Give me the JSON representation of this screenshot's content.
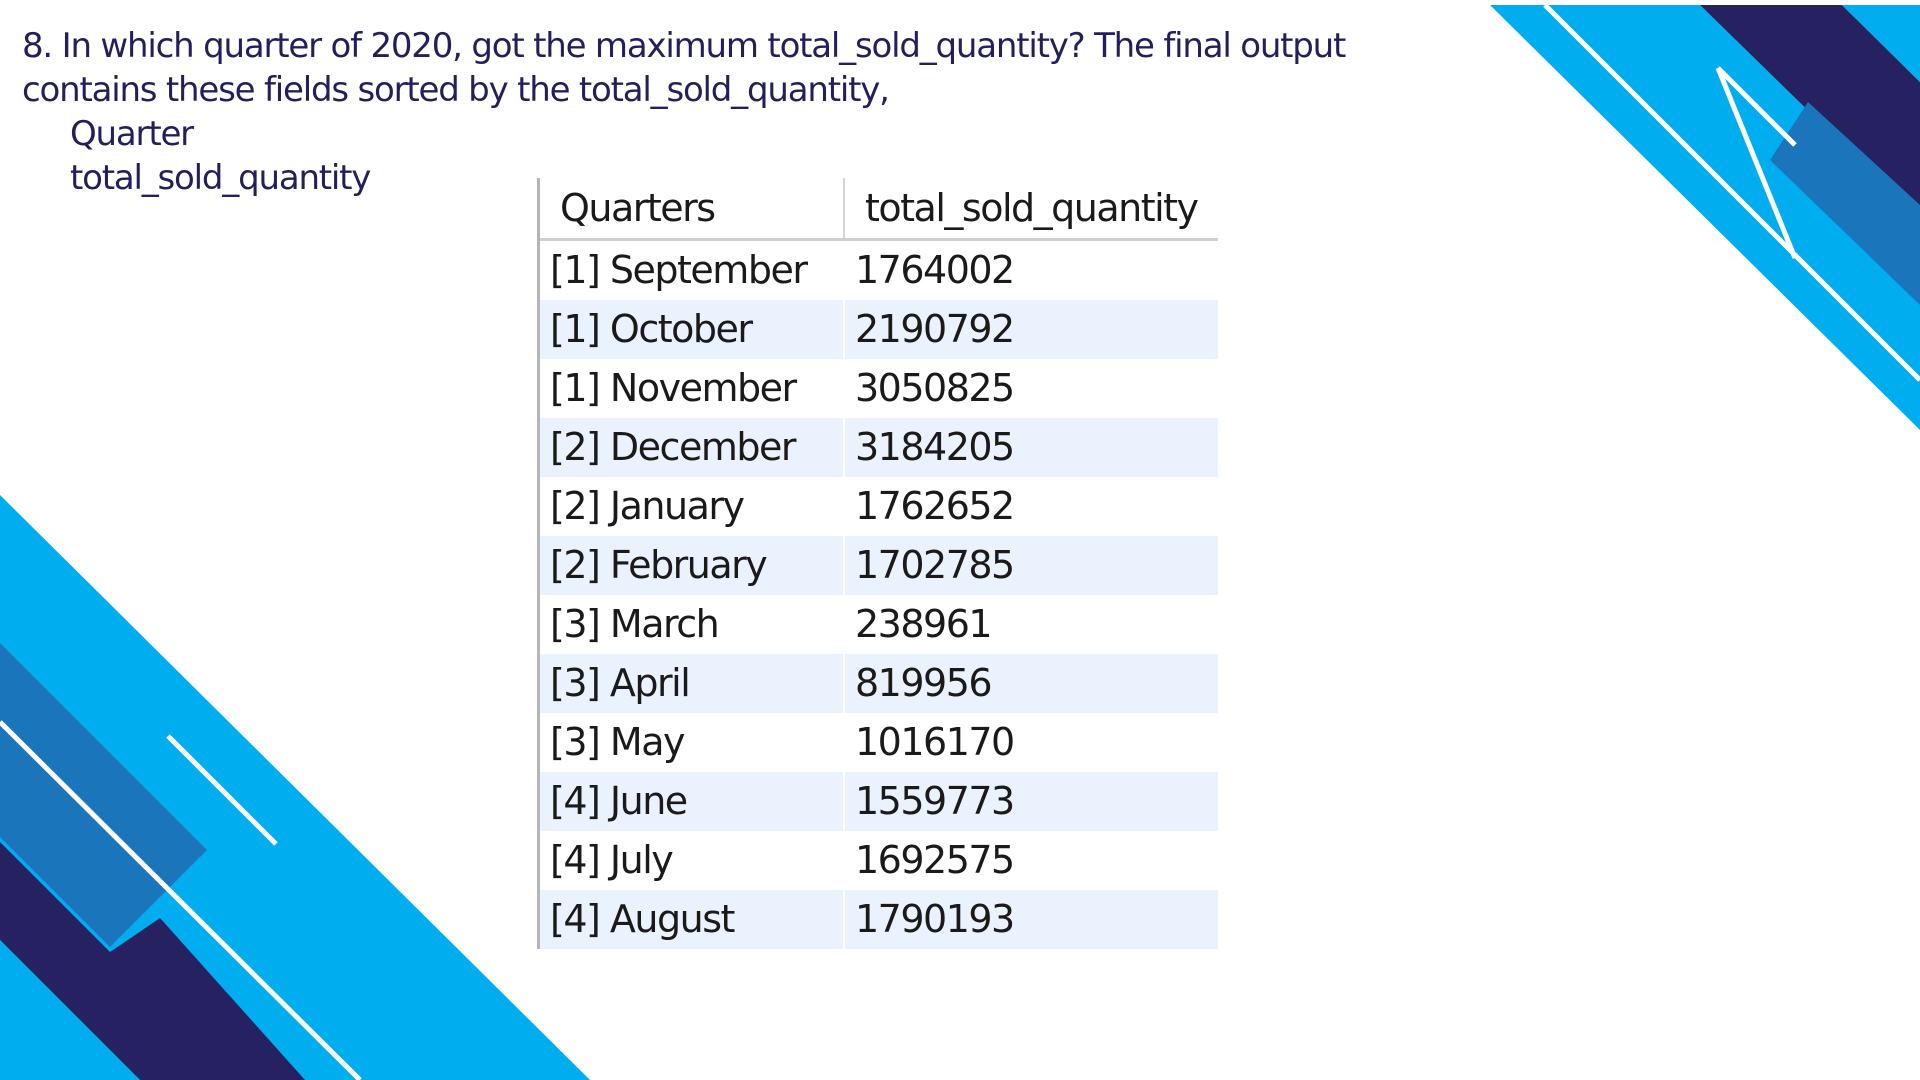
{
  "question": {
    "line1": "8. In which quarter of 2020, got the maximum total_sold_quantity? The final output",
    "line2": "contains these fields sorted by the total_sold_quantity,",
    "fields": [
      "Quarter",
      "total_sold_quantity"
    ]
  },
  "grid": {
    "columns": [
      "Quarters",
      "total_sold_quantity"
    ],
    "rows": [
      {
        "quarter": "[1] September",
        "total": "1764002"
      },
      {
        "quarter": "[1] October",
        "total": "2190792"
      },
      {
        "quarter": "[1] November",
        "total": "3050825"
      },
      {
        "quarter": "[2] December",
        "total": "3184205"
      },
      {
        "quarter": "[2] January",
        "total": "1762652"
      },
      {
        "quarter": "[2] February",
        "total": "1702785"
      },
      {
        "quarter": "[3] March",
        "total": "238961"
      },
      {
        "quarter": "[3] April",
        "total": "819956"
      },
      {
        "quarter": "[3] May",
        "total": "1016170"
      },
      {
        "quarter": "[4] June",
        "total": "1559773"
      },
      {
        "quarter": "[4] July",
        "total": "1692575"
      },
      {
        "quarter": "[4] August",
        "total": "1790193"
      }
    ]
  },
  "theme": {
    "text_color": "#241f5c",
    "accent_light": "#00aeef",
    "accent_mid": "#1b75bb",
    "accent_dark": "#262262",
    "row_alt": "#eaf2fe"
  }
}
